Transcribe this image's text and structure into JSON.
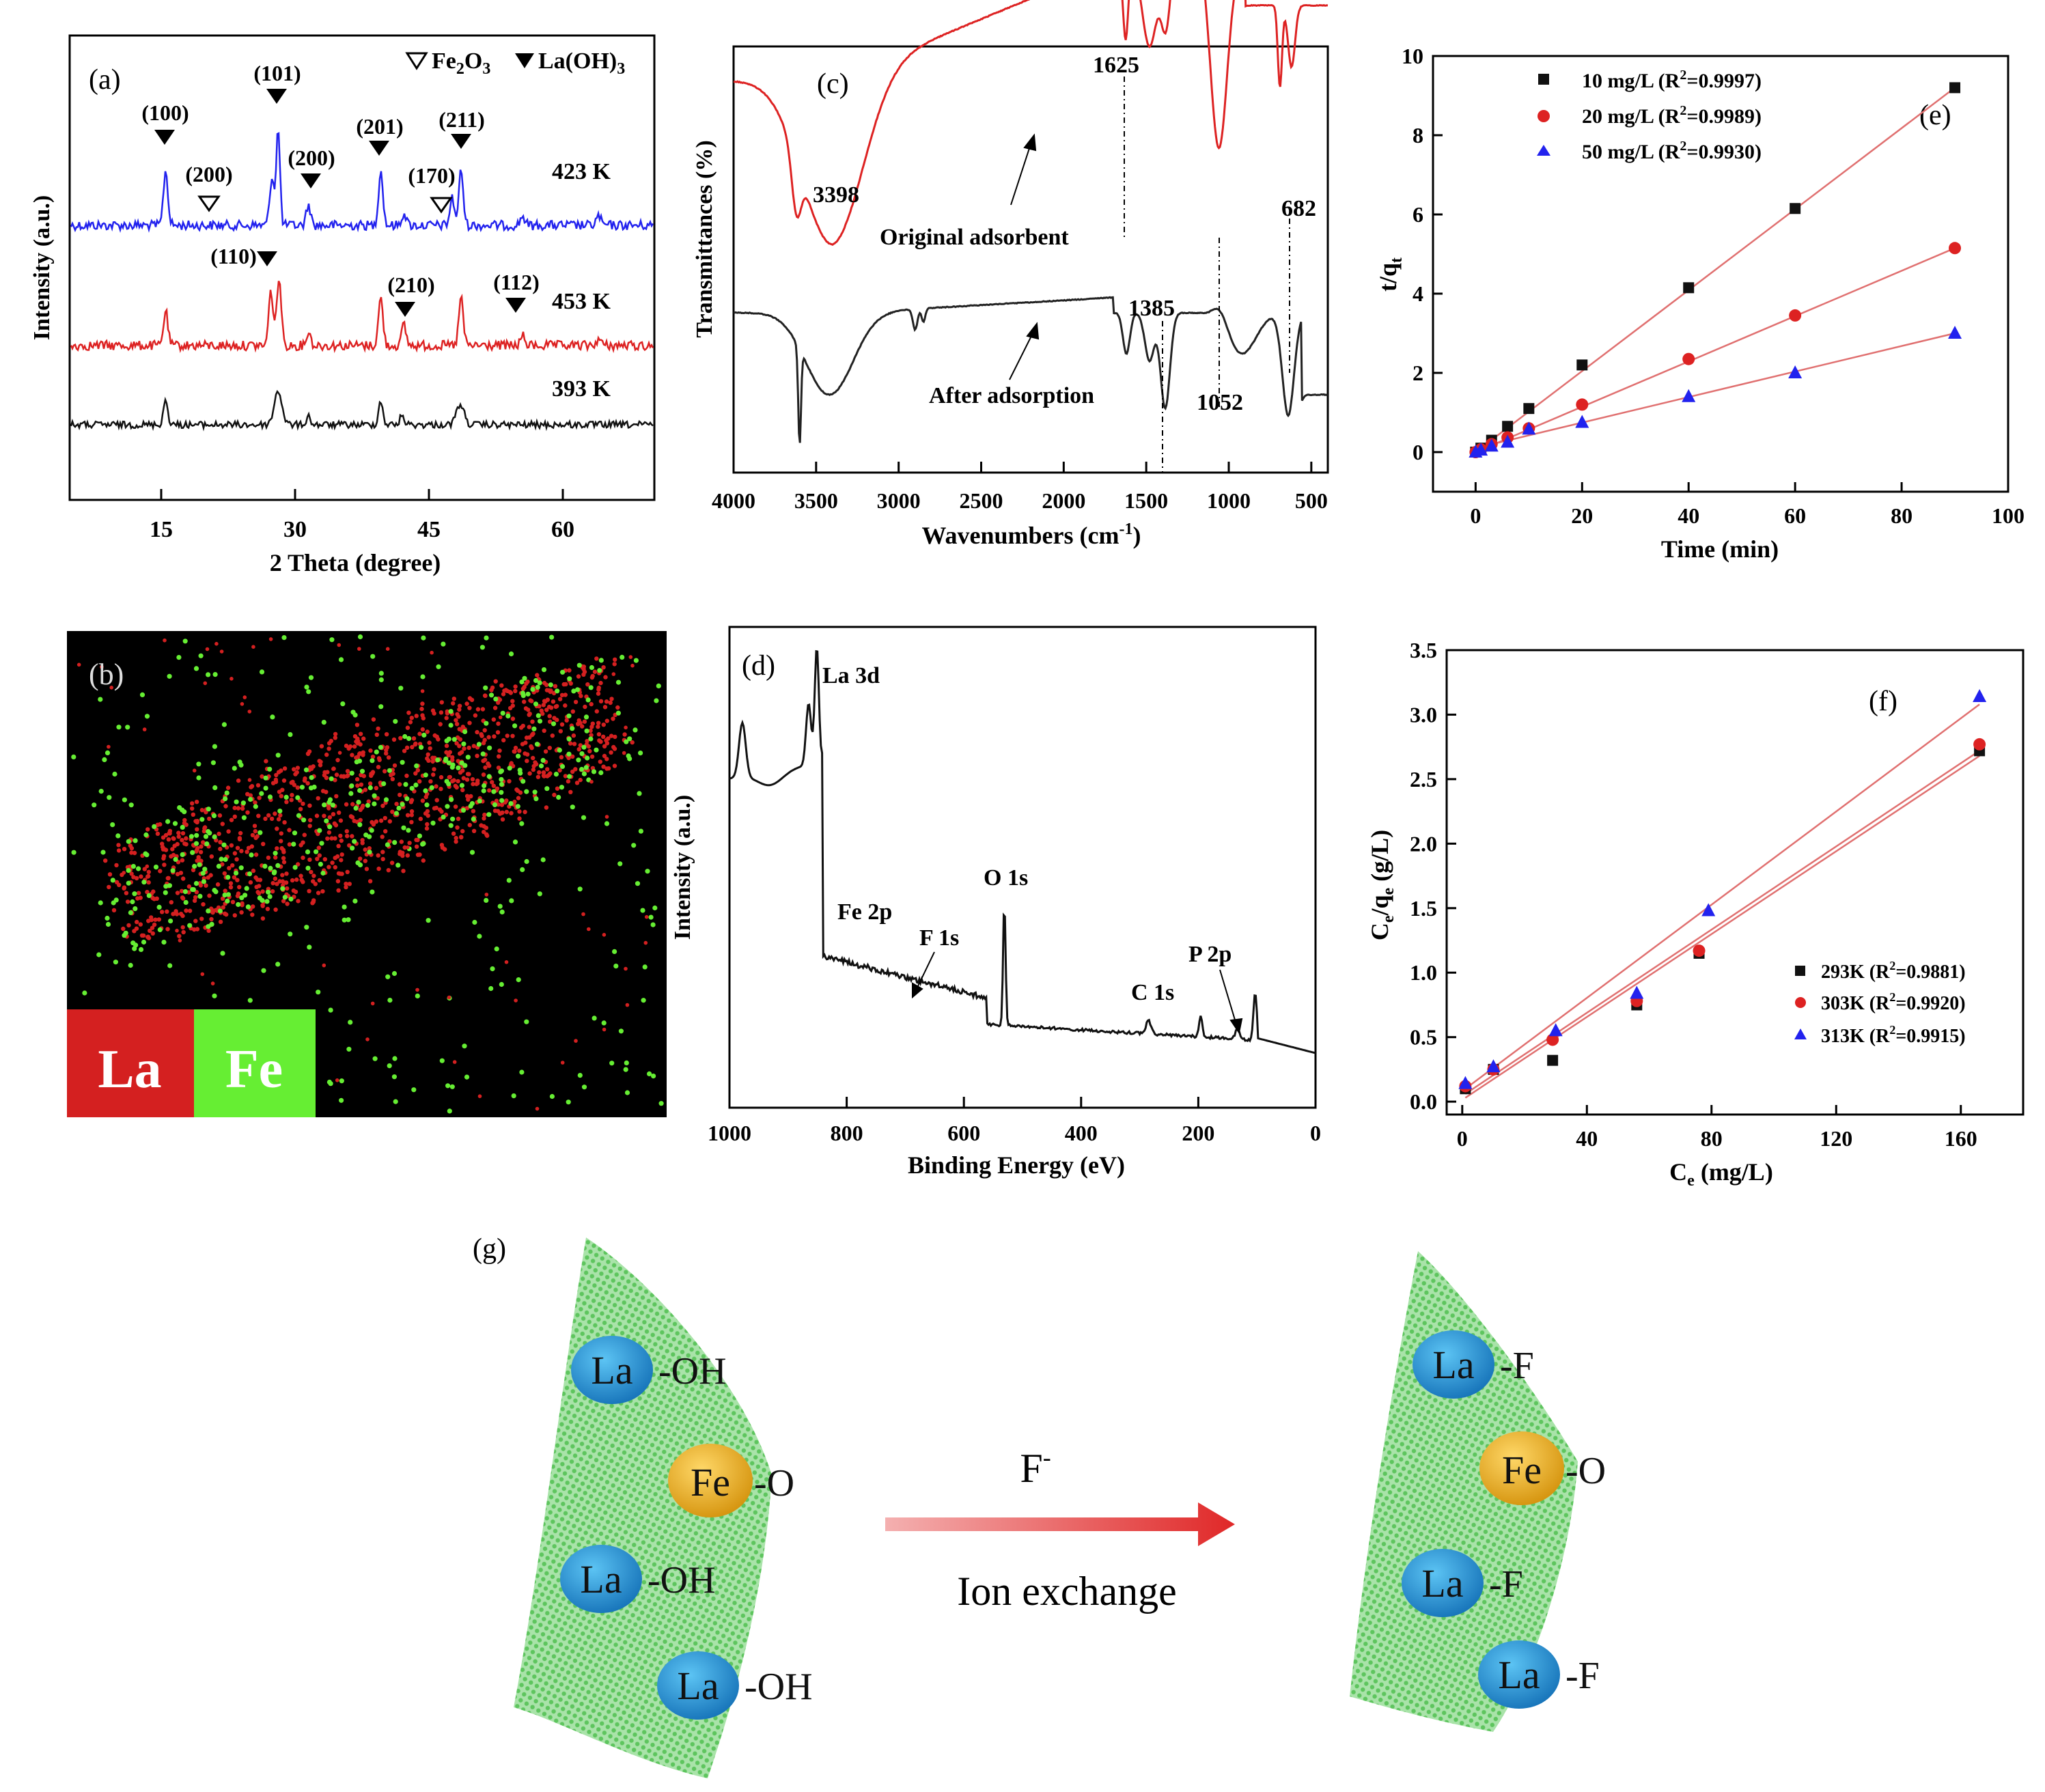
{
  "panels": {
    "a": {
      "label": "(a)",
      "xlabel": "2 Theta (degree)",
      "ylabel": "Intensity (a.u.)",
      "xticks": [
        "15",
        "30",
        "45",
        "60"
      ],
      "legend": {
        "open": "Fe",
        "open_sub": "2",
        "open_o": "O",
        "open_sub2": "3",
        "filled": "La(OH)",
        "filled_sub": "3"
      },
      "traces": [
        {
          "name": "423 K",
          "color": "#2222ee"
        },
        {
          "name": "453 K",
          "color": "#dd2222"
        },
        {
          "name": "393 K",
          "color": "#111111"
        }
      ],
      "peaks_filled": [
        "(100)",
        "(101)",
        "(201)",
        "(211)",
        "(200)",
        "(110)",
        "(210)",
        "(112)"
      ],
      "peaks_open": [
        "(200)",
        "(170)"
      ]
    },
    "b": {
      "label": "(b)",
      "legend_la": "La",
      "legend_fe": "Fe",
      "colors": {
        "la": "#d42020",
        "fe": "#66ee33"
      }
    },
    "c": {
      "label": "(c)",
      "xlabel": "Wavenumbers (cm",
      "xlabel_sup": "-1",
      "xlabel_end": ")",
      "ylabel": "Transmittances (%)",
      "xticks": [
        "4000",
        "3500",
        "3000",
        "2500",
        "2000",
        "1500",
        "1000",
        "500"
      ],
      "annotations": [
        "1625",
        "3398",
        "682",
        "1385",
        "1052"
      ],
      "trace_labels": [
        "Original adsorbent",
        "After adsorption"
      ]
    },
    "d": {
      "label": "(d)",
      "xlabel": "Binding Energy (eV)",
      "ylabel": "Intensity (a.u.)",
      "xticks": [
        "1000",
        "800",
        "600",
        "400",
        "200",
        "0"
      ],
      "peaks": [
        "La 3d",
        "Fe 2p",
        "F 1s",
        "O 1s",
        "C 1s",
        "P 2p"
      ]
    },
    "g": {
      "label": "(g)",
      "arrow_label": "Ion exchange",
      "ion": "F",
      "ion_sup": "-",
      "left": [
        {
          "atom": "La",
          "group": "-OH"
        },
        {
          "atom": "Fe",
          "group": "-O"
        },
        {
          "atom": "La",
          "group": "-OH"
        },
        {
          "atom": "La",
          "group": "-OH"
        }
      ],
      "right": [
        {
          "atom": "La",
          "group": "-F"
        },
        {
          "atom": "Fe",
          "group": "-O"
        },
        {
          "atom": "La",
          "group": "-F"
        },
        {
          "atom": "La",
          "group": "-F"
        }
      ],
      "colors": {
        "la": "#1e90d8",
        "fe": "#f0b020",
        "sheet": "#5cc85c",
        "arrow": "#e03030"
      }
    }
  },
  "chart_data": [
    {
      "id": "e",
      "label": "(e)",
      "type": "scatter",
      "xlabel": "Time (min)",
      "ylabel": "t/q",
      "ylabel_sub": "t",
      "xlim": [
        -8,
        100
      ],
      "ylim": [
        -1,
        10
      ],
      "xticks": [
        "0",
        "20",
        "40",
        "60",
        "80",
        "100"
      ],
      "yticks": [
        "0",
        "2",
        "4",
        "6",
        "8",
        "10"
      ],
      "x": [
        0,
        1,
        3,
        6,
        10,
        20,
        40,
        60,
        90
      ],
      "series": [
        {
          "name": "10 mg/L (R",
          "r2": "=0.9997)",
          "marker": "square",
          "color": "#111111",
          "values": [
            0,
            0.1,
            0.3,
            0.65,
            1.1,
            2.2,
            4.15,
            6.15,
            9.2
          ],
          "fit": [
            [
              0,
              0
            ],
            [
              90,
              9.2
            ]
          ]
        },
        {
          "name": "20 mg/L (R",
          "r2": "=0.9989)",
          "marker": "circle",
          "color": "#dd2222",
          "values": [
            0,
            0.07,
            0.2,
            0.37,
            0.6,
            1.2,
            2.35,
            3.45,
            5.15
          ],
          "fit": [
            [
              0,
              0
            ],
            [
              90,
              5.15
            ]
          ]
        },
        {
          "name": "50 mg/L (R",
          "r2": "=0.9930)",
          "marker": "triangle",
          "color": "#2222ee",
          "values": [
            0,
            0.05,
            0.15,
            0.25,
            0.58,
            0.75,
            1.4,
            2.0,
            3.0
          ],
          "fit": [
            [
              0,
              0.1
            ],
            [
              90,
              3.0
            ]
          ]
        }
      ]
    },
    {
      "id": "f",
      "label": "(f)",
      "type": "scatter",
      "xlabel": "C",
      "xlabel_sub": "e",
      "xlabel_end": " (mg/L)",
      "ylabel": "C",
      "ylabel_mid": "/q",
      "ylabel_end": " (g/L)",
      "xlim": [
        -5,
        180
      ],
      "ylim": [
        -0.1,
        3.5
      ],
      "xticks": [
        "0",
        "40",
        "80",
        "120",
        "160"
      ],
      "yticks": [
        "0.0",
        "0.5",
        "1.0",
        "1.5",
        "2.0",
        "2.5",
        "3.0",
        "3.5"
      ],
      "series": [
        {
          "name": "293K (R",
          "r2": "=0.9881)",
          "marker": "square",
          "color": "#111111",
          "x": [
            1,
            10,
            29,
            56,
            76,
            166
          ],
          "values": [
            0.1,
            0.25,
            0.32,
            0.75,
            1.15,
            2.72
          ],
          "fit": [
            [
              1,
              0.03
            ],
            [
              166,
              2.68
            ]
          ]
        },
        {
          "name": "303K (R",
          "r2": "=0.9920)",
          "marker": "circle",
          "color": "#dd2222",
          "x": [
            1,
            10,
            29,
            56,
            76,
            166
          ],
          "values": [
            0.12,
            0.25,
            0.48,
            0.78,
            1.17,
            2.77
          ],
          "fit": [
            [
              1,
              0.06
            ],
            [
              166,
              2.72
            ]
          ]
        },
        {
          "name": "313K (R",
          "r2": "=0.9915)",
          "marker": "triangle",
          "color": "#2222ee",
          "x": [
            1,
            10,
            30,
            56,
            79,
            166
          ],
          "values": [
            0.14,
            0.27,
            0.55,
            0.84,
            1.48,
            3.14
          ],
          "fit": [
            [
              1,
              0.1
            ],
            [
              166,
              3.08
            ]
          ]
        }
      ]
    }
  ]
}
